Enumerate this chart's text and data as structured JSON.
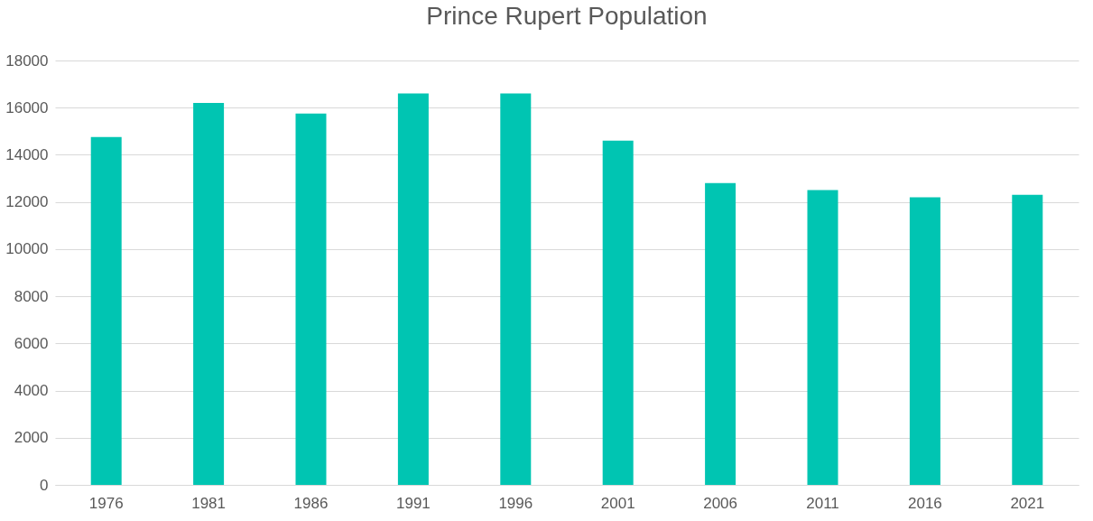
{
  "chart_data": {
    "type": "bar",
    "title": "Prince Rupert Population",
    "categories": [
      "1976",
      "1981",
      "1986",
      "1991",
      "1996",
      "2001",
      "2006",
      "2011",
      "2016",
      "2021"
    ],
    "values": [
      14750,
      16200,
      15750,
      16600,
      16600,
      14600,
      12800,
      12500,
      12200,
      12300
    ],
    "color": "#00c5b2",
    "ylim": [
      0,
      18000
    ],
    "yticks": [
      0,
      2000,
      4000,
      6000,
      8000,
      10000,
      12000,
      14000,
      16000,
      18000
    ],
    "grid": "y"
  }
}
